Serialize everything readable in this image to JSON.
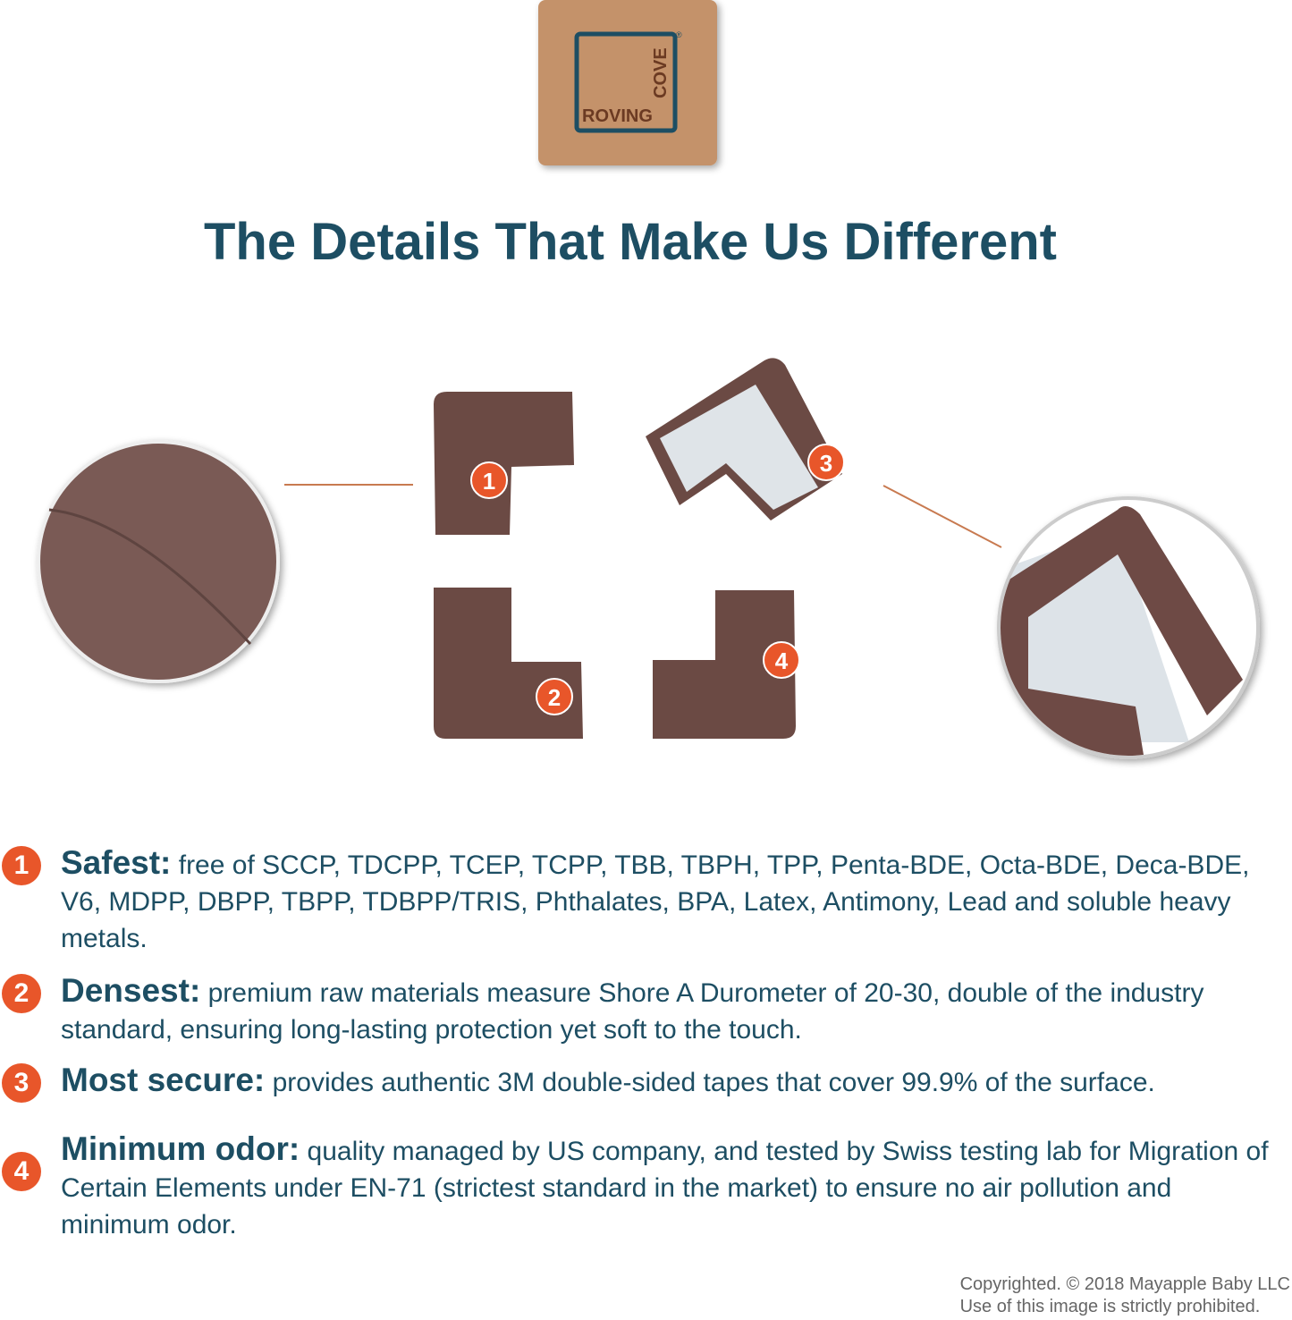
{
  "logo": {
    "word1": "ROVING",
    "word2": "COVE",
    "mark": "®"
  },
  "title": "The Details That Make Us Different",
  "product_badges": [
    "1",
    "2",
    "3",
    "4"
  ],
  "features": [
    {
      "number": "1",
      "heading": "Safest:",
      "body": "free of SCCP, TDCPP, TCEP, TCPP, TBB, TBPH, TPP, Penta-BDE, Octa-BDE, Deca-BDE, V6, MDPP, DBPP, TBPP, TDBPP/TRIS, Phthalates, BPA, Latex, Antimony, Lead and soluble heavy metals."
    },
    {
      "number": "2",
      "heading": "Densest:",
      "body": "premium raw materials measure Shore A Durometer of 20-30, double of the industry standard, ensuring long-lasting protection yet soft to the touch."
    },
    {
      "number": "3",
      "heading": "Most secure:",
      "body": "provides authentic 3M double-sided tapes that cover 99.9% of the surface."
    },
    {
      "number": "4",
      "heading": "Minimum odor:",
      "body": "quality managed by US company, and tested by Swiss testing lab for Migration of Certain Elements under EN-71 (strictest standard in the market) to ensure no air pollution and minimum odor."
    }
  ],
  "copyright": {
    "line1": "Copyrighted. © 2018 Mayapple Baby LLC",
    "line2": "Use of this image is strictly prohibited."
  }
}
